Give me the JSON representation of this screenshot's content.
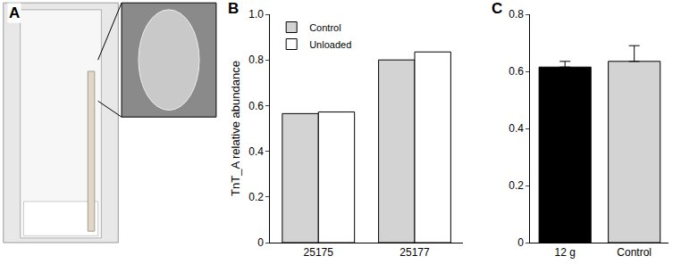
{
  "photo_panel": {
    "label": "A"
  },
  "chart_data": [
    {
      "type": "bar",
      "title": "B",
      "y_label": "TnT_A relative abundance",
      "categories": [
        "25175",
        "25177"
      ],
      "series": [
        {
          "name": "Control",
          "color": "#d3d3d3",
          "values": [
            0.565,
            0.8
          ]
        },
        {
          "name": "Unloaded",
          "color": "#ffffff",
          "values": [
            0.572,
            0.835
          ]
        }
      ],
      "ylim": [
        0,
        1
      ],
      "yticks": [
        0,
        0.2,
        0.4,
        0.6,
        0.8,
        {
          "value": 1,
          "label": "1.0"
        }
      ],
      "grid": false,
      "legend": "upper left"
    },
    {
      "type": "bar",
      "title": "C",
      "categories": [
        "12 g",
        "Control"
      ],
      "values": [
        0.615,
        0.635
      ],
      "errors": [
        0.02,
        0.055
      ],
      "colors": [
        "#000000",
        "#d3d3d3"
      ],
      "ylim": [
        0,
        0.8
      ],
      "yticks": [
        0,
        0.2,
        0.4,
        0.6,
        0.8
      ],
      "grid": false
    }
  ]
}
